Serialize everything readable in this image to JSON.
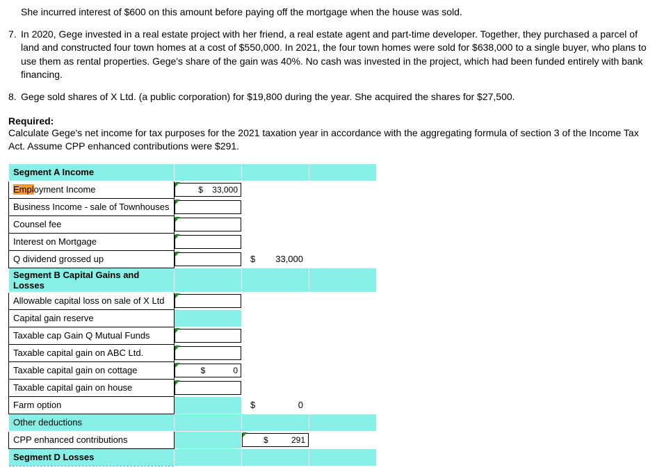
{
  "partial_top": "She incurred interest of $600 on this amount before paying off the mortgage when the house was sold.",
  "item7": {
    "num": "7.",
    "text": "In 2020, Gege invested in a real estate project with her friend, a real estate agent and part-time developer. Together, they purchased a parcel of land and constructed four town homes at a cost of $550,000. In 2021, the four town homes were sold for $638,000  to a single buyer, who plans to use them as rental properties. Gege's share of the gain was 40%. No cash was invested in the project, which had been funded entirely with bank financing."
  },
  "item8": {
    "num": "8.",
    "text": "Gege sold shares of X Ltd. (a public corporation) for $19,800 during the year. She acquired the shares for $27,500."
  },
  "required_label": "Required:",
  "required_text": "Calculate Gege's net income for tax purposes for the 2021 taxation year in accordance with the aggregating formula of section 3 of the Income Tax Act. Assume CPP enhanced contributions were $291.",
  "table": {
    "segA": "Segment A Income",
    "rows": [
      "Employment Income",
      "Business Income - sale of Townhouses",
      "Counsel fee",
      "Interest on Mortgage",
      "Q  dividend grossed up"
    ],
    "segB": "Segment B Capital Gains and Losses",
    "rowsB": [
      "Allowable capital loss on sale of X Ltd",
      "Capital gain reserve",
      "Taxable cap Gain Q Mutual Funds",
      "Taxable capital gain on ABC Ltd.",
      "Taxable capital gain on cottage",
      "Taxable capital gain on house",
      "Farm option"
    ],
    "other": "Other deductions",
    "cpp": "CPP enhanced contributions",
    "segD": "Segment D Losses",
    "emp_income_val": "$    33,000",
    "segA_total": {
      "sym": "$",
      "val": "33,000"
    },
    "cottage_val": "$            0",
    "segB_total": {
      "sym": "$",
      "val": "0"
    },
    "cpp_val": {
      "sym": "$",
      "val": "291"
    }
  },
  "colors": {
    "highlight": "#87f0e6",
    "selection": "#ff9933",
    "marker": "#2b8a2b"
  }
}
